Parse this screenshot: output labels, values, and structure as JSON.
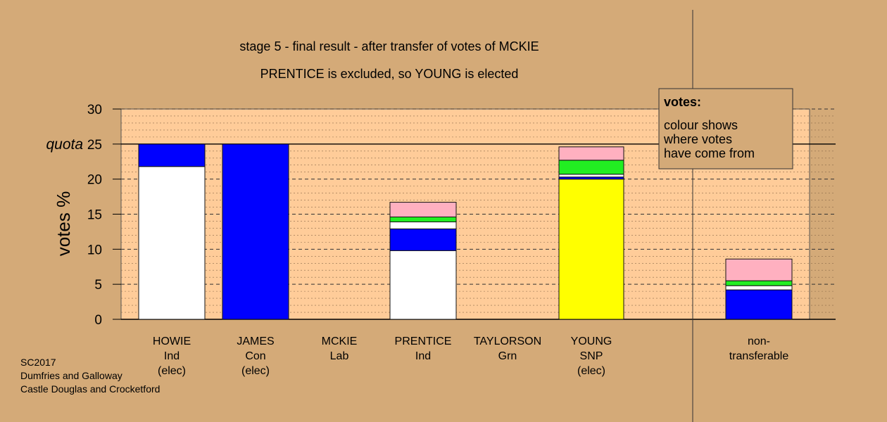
{
  "chart_data": {
    "type": "bar",
    "stacked": true,
    "title": "stage 5 - final result - after transfer of votes of MCKIE",
    "subtitle": "PRENTICE is excluded, so YOUNG is elected",
    "ylabel": "votes %",
    "ylim": [
      0,
      30
    ],
    "yticks": [
      0,
      5,
      10,
      15,
      20,
      25,
      30
    ],
    "ytick_labels": [
      "0",
      "5",
      "10",
      "15",
      "20",
      "quota 25",
      "30"
    ],
    "quota": 25,
    "quota_label": "quota",
    "grid": true,
    "categories": [
      {
        "lines": [
          "HOWIE",
          "Ind",
          "(elec)"
        ]
      },
      {
        "lines": [
          "JAMES",
          "Con",
          "(elec)"
        ]
      },
      {
        "lines": [
          "MCKIE",
          "Lab"
        ]
      },
      {
        "lines": [
          "PRENTICE",
          "Ind"
        ]
      },
      {
        "lines": [
          "TAYLORSON",
          "Grn"
        ]
      },
      {
        "lines": [
          "YOUNG",
          "SNP",
          "(elec)"
        ]
      },
      {
        "lines": [
          "non-",
          "transferable"
        ]
      }
    ],
    "stacks": [
      [
        {
          "value": 21.8,
          "color": "#ffffff"
        },
        {
          "value": 3.2,
          "color": "#0000ff"
        }
      ],
      [
        {
          "value": 25.0,
          "color": "#0000ff"
        }
      ],
      [],
      [
        {
          "value": 9.8,
          "color": "#ffffff"
        },
        {
          "value": 3.1,
          "color": "#0000ff"
        },
        {
          "value": 1.0,
          "color": "#ffffff"
        },
        {
          "value": 0.7,
          "color": "#22ee22"
        },
        {
          "value": 2.1,
          "color": "#ffb0c0"
        }
      ],
      [],
      [
        {
          "value": 20.0,
          "color": "#ffff00"
        },
        {
          "value": 0.3,
          "color": "#0000ff"
        },
        {
          "value": 0.4,
          "color": "#ffffff"
        },
        {
          "value": 2.0,
          "color": "#22ee22"
        },
        {
          "value": 1.9,
          "color": "#ffb0c0"
        }
      ],
      [
        {
          "value": 4.2,
          "color": "#0000ff"
        },
        {
          "value": 0.6,
          "color": "#ffffff"
        },
        {
          "value": 0.7,
          "color": "#22ee22"
        },
        {
          "value": 3.1,
          "color": "#ffb0c0"
        }
      ]
    ],
    "legend": {
      "title": "votes:",
      "lines": [
        "colour shows",
        "where votes",
        "have come from"
      ],
      "placement": "top-right"
    }
  },
  "colors": {
    "background": "#d4aa78",
    "plot_area": "#ffcc99"
  },
  "footer": {
    "lines": [
      "SC2017",
      "Dumfries and Galloway",
      "Castle Douglas and Crocketford"
    ]
  }
}
